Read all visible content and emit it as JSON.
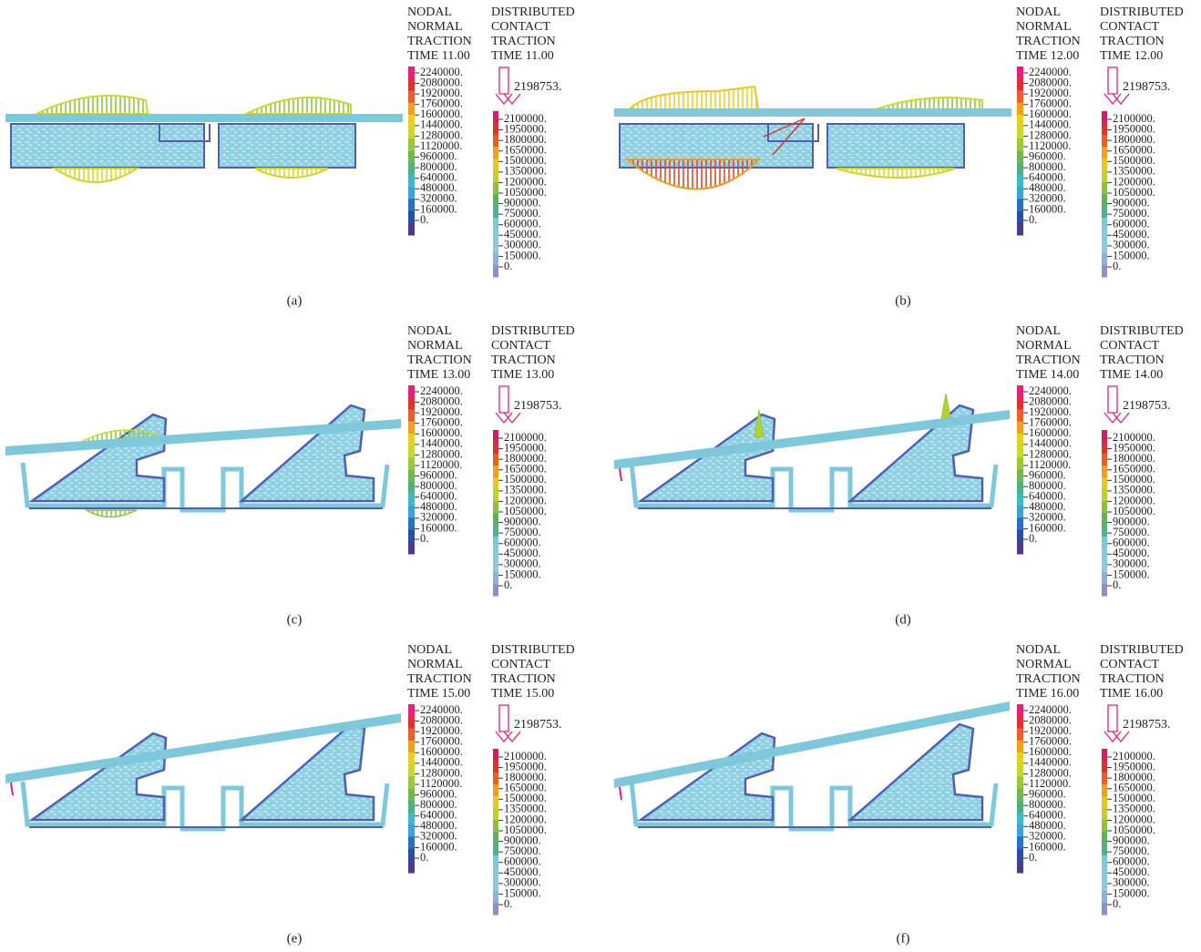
{
  "legend_nodal": {
    "title": [
      "NODAL",
      "NORMAL",
      "TRACTION"
    ],
    "ticks": [
      "2240000.",
      "2080000.",
      "1920000.",
      "1760000.",
      "1600000.",
      "1440000.",
      "1280000.",
      "1120000.",
      "960000.",
      "800000.",
      "640000.",
      "480000.",
      "320000.",
      "160000.",
      "0."
    ]
  },
  "legend_contact": {
    "title": [
      "DISTRIBUTED",
      "CONTACT",
      "TRACTION"
    ],
    "arrow_value": "2198753.",
    "ticks": [
      "2100000.",
      "1950000.",
      "1800000.",
      "1650000.",
      "1500000.",
      "1350000.",
      "1200000.",
      "1050000.",
      "900000.",
      "750000.",
      "600000.",
      "450000.",
      "300000.",
      "150000.",
      "0."
    ]
  },
  "panels": [
    {
      "label": "(a)",
      "time": "TIME 11.00"
    },
    {
      "label": "(b)",
      "time": "TIME 12.00"
    },
    {
      "label": "(c)",
      "time": "TIME 13.00"
    },
    {
      "label": "(d)",
      "time": "TIME 14.00"
    },
    {
      "label": "(e)",
      "time": "TIME 15.00"
    },
    {
      "label": "(f)",
      "time": "TIME 16.00"
    }
  ]
}
